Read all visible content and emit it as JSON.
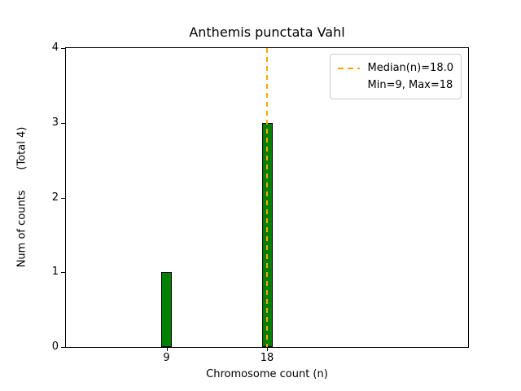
{
  "figure": {
    "ylabel": "Num of counts      (Total 4)"
  },
  "legend": {
    "items": [
      {
        "label": "Median(n)=18.0",
        "handle": "orange-dashed-line"
      },
      {
        "label": "Min=9, Max=18",
        "handle": "none"
      }
    ]
  },
  "chart_data": {
    "type": "bar",
    "title": "Anthemis punctata Vahl",
    "xlabel": "Chromosome count (n)",
    "ylabel": "Num of counts (Total 4)",
    "total_counts": 4,
    "x": [
      9,
      18
    ],
    "values": [
      1,
      3
    ],
    "median": 18.0,
    "min": 9,
    "max": 18,
    "xlim": [
      0,
      36
    ],
    "ylim": [
      0,
      4
    ],
    "xticks": [
      9,
      18
    ],
    "yticks": [
      0,
      1,
      2,
      3,
      4
    ],
    "bar_color": "#008000",
    "bar_edge_color": "#000000",
    "median_line_color": "#FFA500",
    "grid": false,
    "legend_position": "upper right"
  }
}
